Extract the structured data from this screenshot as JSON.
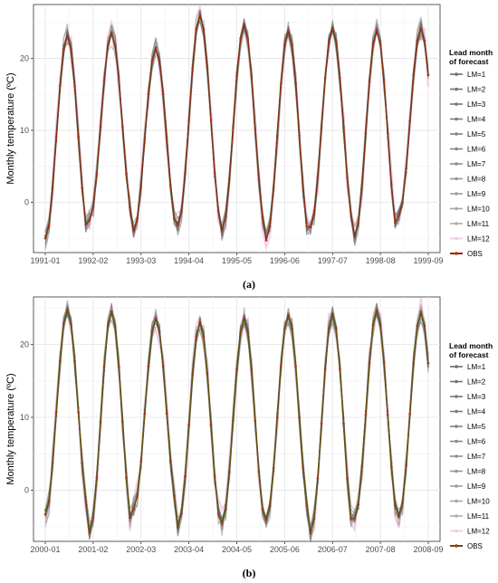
{
  "chart_data": [
    {
      "type": "line",
      "caption": "(a)",
      "ylabel": "Monthly temperature (ºC)",
      "yticks": [
        0,
        10,
        20
      ],
      "ylim": [
        -7,
        27.5
      ],
      "xticks": [
        "1991-01",
        "1992-02",
        "1993-03",
        "1994-04",
        "1995-05",
        "1996-06",
        "1997-07",
        "1998-08",
        "1999-09"
      ],
      "legend_title": [
        "Lead month",
        "of forecast"
      ],
      "legend_position": "right",
      "grid": true,
      "series_names": [
        "LM=1",
        "LM=2",
        "LM=3",
        "LM=4",
        "LM=5",
        "LM=6",
        "LM=7",
        "LM=8",
        "LM=9",
        "LM=10",
        "LM=11",
        "LM=12",
        "OBS"
      ],
      "series_colors": [
        "#6e6e6e",
        "#727272",
        "#777777",
        "#7c7c7c",
        "#828282",
        "#888888",
        "#8f8f8f",
        "#969696",
        "#9e9e9e",
        "#a6a6a6",
        "#afafaf",
        "#f0c8e6",
        "#8b2a12"
      ],
      "obs_peaks": [
        23.2,
        23.5,
        21.4,
        26.0,
        24.7,
        23.8,
        24.2,
        23.9,
        24.2
      ],
      "obs_troughs": [
        -5.0,
        -2.5,
        -4.0,
        -3.2,
        -4.0,
        -5.3,
        -3.5,
        -4.8,
        -1.8
      ]
    },
    {
      "type": "line",
      "caption": "(b)",
      "ylabel": "Monthly temperature (ºC)",
      "yticks": [
        0,
        10,
        20
      ],
      "ylim": [
        -7,
        26.5
      ],
      "xticks": [
        "2000-01",
        "2001-02",
        "2002-03",
        "2003-04",
        "2004-05",
        "2005-06",
        "2006-07",
        "2007-08",
        "2008-09"
      ],
      "legend_title": [
        "Lead month",
        "of forecast"
      ],
      "legend_position": "right",
      "grid": true,
      "series_names": [
        "LM=1",
        "LM=2",
        "LM=3",
        "LM=4",
        "LM=5",
        "LM=6",
        "LM=7",
        "LM=8",
        "LM=9",
        "LM=10",
        "LM=11",
        "LM=12",
        "OBS"
      ],
      "series_colors": [
        "#6e6e6e",
        "#727272",
        "#777777",
        "#7c7c7c",
        "#828282",
        "#888888",
        "#8f8f8f",
        "#969696",
        "#9e9e9e",
        "#a6a6a6",
        "#afafaf",
        "#f0c8e6",
        "#6b4a10"
      ],
      "obs_peaks": [
        24.7,
        24.5,
        23.5,
        23.0,
        23.6,
        24.0,
        24.2,
        24.6,
        24.4
      ],
      "obs_troughs": [
        -3.3,
        -5.8,
        -2.5,
        -5.1,
        -4.5,
        -4.0,
        -5.9,
        -3.9,
        -3.6
      ]
    }
  ]
}
